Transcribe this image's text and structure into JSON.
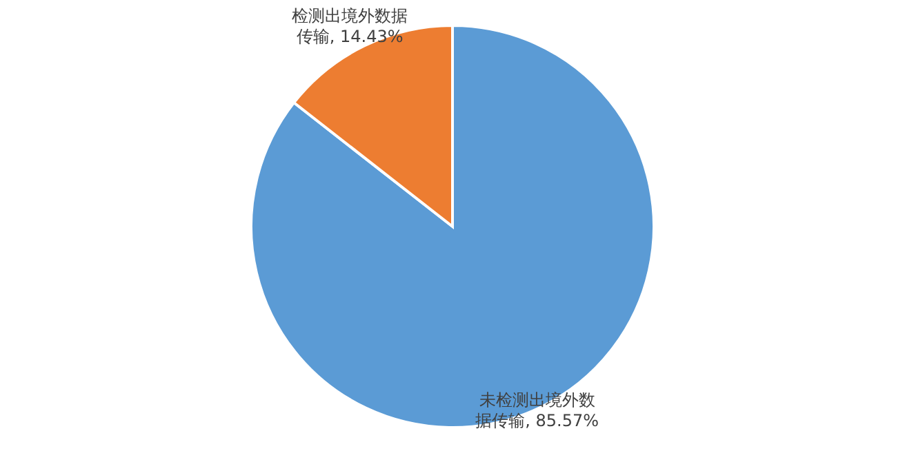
{
  "chart_data": {
    "type": "pie",
    "categories": [
      "未检测出境外数据传输",
      "检测出境外数据传输"
    ],
    "values": [
      85.57,
      14.43
    ],
    "value_labels": [
      "85.57%",
      "14.43%"
    ],
    "colors": [
      "#5b9bd5",
      "#ed7d31"
    ],
    "legend": false
  }
}
